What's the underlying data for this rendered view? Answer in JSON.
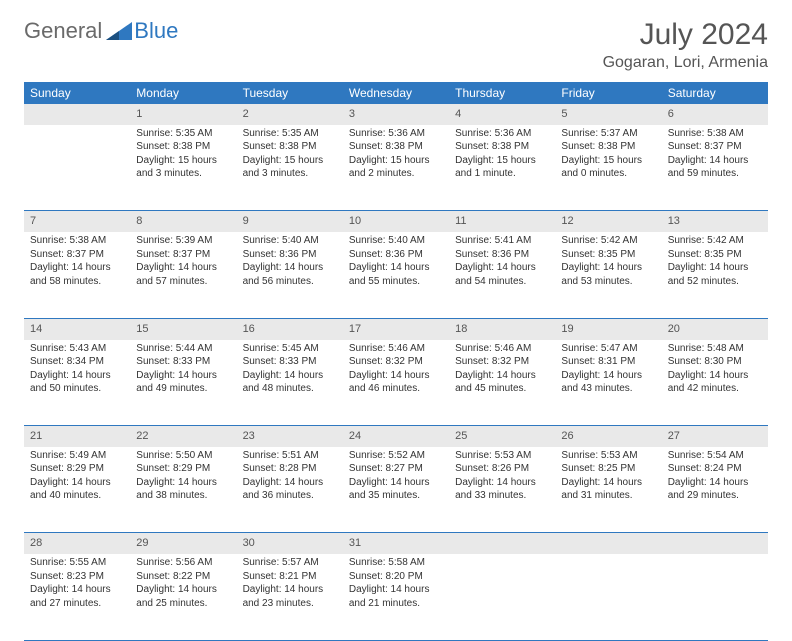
{
  "logo": {
    "text_a": "General",
    "text_b": "Blue"
  },
  "title": "July 2024",
  "location": "Gogaran, Lori, Armenia",
  "colors": {
    "header_bg": "#2f78c0",
    "header_text": "#ffffff",
    "daynum_bg": "#e9e9e9",
    "border": "#2f78c0",
    "body_text": "#333333",
    "title_text": "#555555"
  },
  "day_headers": [
    "Sunday",
    "Monday",
    "Tuesday",
    "Wednesday",
    "Thursday",
    "Friday",
    "Saturday"
  ],
  "weeks": [
    {
      "nums": [
        "",
        "1",
        "2",
        "3",
        "4",
        "5",
        "6"
      ],
      "cells": [
        [],
        [
          "Sunrise: 5:35 AM",
          "Sunset: 8:38 PM",
          "Daylight: 15 hours",
          "and 3 minutes."
        ],
        [
          "Sunrise: 5:35 AM",
          "Sunset: 8:38 PM",
          "Daylight: 15 hours",
          "and 3 minutes."
        ],
        [
          "Sunrise: 5:36 AM",
          "Sunset: 8:38 PM",
          "Daylight: 15 hours",
          "and 2 minutes."
        ],
        [
          "Sunrise: 5:36 AM",
          "Sunset: 8:38 PM",
          "Daylight: 15 hours",
          "and 1 minute."
        ],
        [
          "Sunrise: 5:37 AM",
          "Sunset: 8:38 PM",
          "Daylight: 15 hours",
          "and 0 minutes."
        ],
        [
          "Sunrise: 5:38 AM",
          "Sunset: 8:37 PM",
          "Daylight: 14 hours",
          "and 59 minutes."
        ]
      ]
    },
    {
      "nums": [
        "7",
        "8",
        "9",
        "10",
        "11",
        "12",
        "13"
      ],
      "cells": [
        [
          "Sunrise: 5:38 AM",
          "Sunset: 8:37 PM",
          "Daylight: 14 hours",
          "and 58 minutes."
        ],
        [
          "Sunrise: 5:39 AM",
          "Sunset: 8:37 PM",
          "Daylight: 14 hours",
          "and 57 minutes."
        ],
        [
          "Sunrise: 5:40 AM",
          "Sunset: 8:36 PM",
          "Daylight: 14 hours",
          "and 56 minutes."
        ],
        [
          "Sunrise: 5:40 AM",
          "Sunset: 8:36 PM",
          "Daylight: 14 hours",
          "and 55 minutes."
        ],
        [
          "Sunrise: 5:41 AM",
          "Sunset: 8:36 PM",
          "Daylight: 14 hours",
          "and 54 minutes."
        ],
        [
          "Sunrise: 5:42 AM",
          "Sunset: 8:35 PM",
          "Daylight: 14 hours",
          "and 53 minutes."
        ],
        [
          "Sunrise: 5:42 AM",
          "Sunset: 8:35 PM",
          "Daylight: 14 hours",
          "and 52 minutes."
        ]
      ]
    },
    {
      "nums": [
        "14",
        "15",
        "16",
        "17",
        "18",
        "19",
        "20"
      ],
      "cells": [
        [
          "Sunrise: 5:43 AM",
          "Sunset: 8:34 PM",
          "Daylight: 14 hours",
          "and 50 minutes."
        ],
        [
          "Sunrise: 5:44 AM",
          "Sunset: 8:33 PM",
          "Daylight: 14 hours",
          "and 49 minutes."
        ],
        [
          "Sunrise: 5:45 AM",
          "Sunset: 8:33 PM",
          "Daylight: 14 hours",
          "and 48 minutes."
        ],
        [
          "Sunrise: 5:46 AM",
          "Sunset: 8:32 PM",
          "Daylight: 14 hours",
          "and 46 minutes."
        ],
        [
          "Sunrise: 5:46 AM",
          "Sunset: 8:32 PM",
          "Daylight: 14 hours",
          "and 45 minutes."
        ],
        [
          "Sunrise: 5:47 AM",
          "Sunset: 8:31 PM",
          "Daylight: 14 hours",
          "and 43 minutes."
        ],
        [
          "Sunrise: 5:48 AM",
          "Sunset: 8:30 PM",
          "Daylight: 14 hours",
          "and 42 minutes."
        ]
      ]
    },
    {
      "nums": [
        "21",
        "22",
        "23",
        "24",
        "25",
        "26",
        "27"
      ],
      "cells": [
        [
          "Sunrise: 5:49 AM",
          "Sunset: 8:29 PM",
          "Daylight: 14 hours",
          "and 40 minutes."
        ],
        [
          "Sunrise: 5:50 AM",
          "Sunset: 8:29 PM",
          "Daylight: 14 hours",
          "and 38 minutes."
        ],
        [
          "Sunrise: 5:51 AM",
          "Sunset: 8:28 PM",
          "Daylight: 14 hours",
          "and 36 minutes."
        ],
        [
          "Sunrise: 5:52 AM",
          "Sunset: 8:27 PM",
          "Daylight: 14 hours",
          "and 35 minutes."
        ],
        [
          "Sunrise: 5:53 AM",
          "Sunset: 8:26 PM",
          "Daylight: 14 hours",
          "and 33 minutes."
        ],
        [
          "Sunrise: 5:53 AM",
          "Sunset: 8:25 PM",
          "Daylight: 14 hours",
          "and 31 minutes."
        ],
        [
          "Sunrise: 5:54 AM",
          "Sunset: 8:24 PM",
          "Daylight: 14 hours",
          "and 29 minutes."
        ]
      ]
    },
    {
      "nums": [
        "28",
        "29",
        "30",
        "31",
        "",
        "",
        ""
      ],
      "cells": [
        [
          "Sunrise: 5:55 AM",
          "Sunset: 8:23 PM",
          "Daylight: 14 hours",
          "and 27 minutes."
        ],
        [
          "Sunrise: 5:56 AM",
          "Sunset: 8:22 PM",
          "Daylight: 14 hours",
          "and 25 minutes."
        ],
        [
          "Sunrise: 5:57 AM",
          "Sunset: 8:21 PM",
          "Daylight: 14 hours",
          "and 23 minutes."
        ],
        [
          "Sunrise: 5:58 AM",
          "Sunset: 8:20 PM",
          "Daylight: 14 hours",
          "and 21 minutes."
        ],
        [],
        [],
        []
      ]
    }
  ]
}
